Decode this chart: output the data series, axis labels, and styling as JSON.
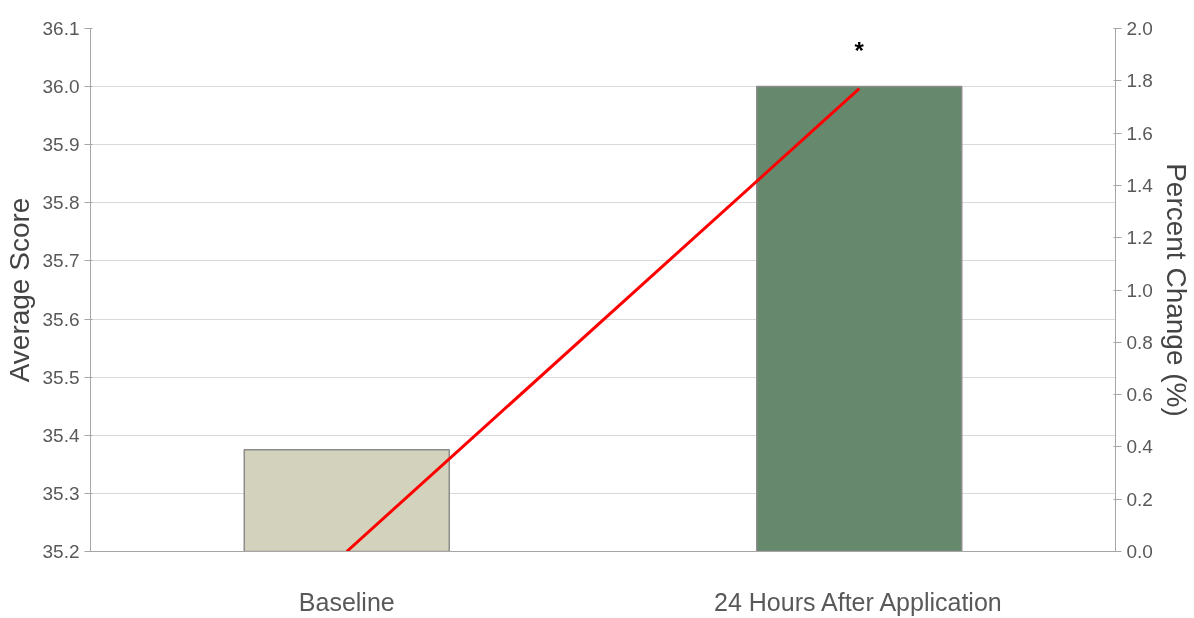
{
  "chart_data": {
    "type": "bar",
    "ylabel": "Average Score",
    "y2label": "Percent Change (%)",
    "categories": [
      "Baseline",
      "24 Hours After Application"
    ],
    "series": [
      {
        "colors": [
          "#d3d3bd",
          "#66896e"
        ],
        "values": [
          35.375,
          36.0
        ]
      },
      {
        "type": "line",
        "axis": "y2",
        "color": "#ff0000",
        "values": [
          0,
          1.77
        ]
      }
    ],
    "ylim": [
      35.2,
      36.1
    ],
    "yticks": [
      35.2,
      35.3,
      35.4,
      35.5,
      35.6,
      35.7,
      35.8,
      35.9,
      {
        "value": 36.0,
        "label": "36.0"
      },
      36.1
    ],
    "y2lim": [
      0,
      2
    ],
    "y2ticks": [
      {
        "value": 0,
        "label": "0.0"
      },
      0.2,
      0.4,
      0.6,
      0.8,
      {
        "value": 1,
        "label": "1.0"
      },
      1.2,
      1.4,
      1.6,
      1.8,
      {
        "value": 2,
        "label": "2.0"
      }
    ],
    "annotations": [
      "*"
    ],
    "grid": "y"
  }
}
